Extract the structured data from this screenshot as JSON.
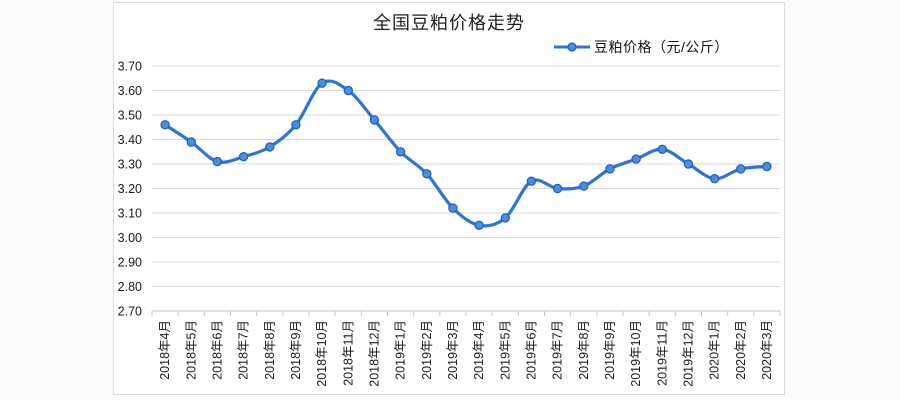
{
  "page": {
    "background": "#fbfbfb"
  },
  "chart": {
    "colors": {
      "line": "#2d74d4",
      "marker_fill": "#4b8de0",
      "marker_stroke": "#1d5fb8",
      "grid": "#d9d9d9",
      "axis": "#c2c2c2",
      "text": "#1a1a1a"
    }
  },
  "chart_data": {
    "type": "line",
    "title": "全国豆粕价格走势",
    "legend_position": "top-right",
    "grid": true,
    "smooth": true,
    "categories": [
      "2018年4月",
      "2018年5月",
      "2018年6月",
      "2018年7月",
      "2018年8月",
      "2018年9月",
      "2018年10月",
      "2018年11月",
      "2018年12月",
      "2019年1月",
      "2019年2月",
      "2019年3月",
      "2019年4月",
      "2019年5月",
      "2019年6月",
      "2019年7月",
      "2019年8月",
      "2019年9月",
      "2019年10月",
      "2019年11月",
      "2019年12月",
      "2020年1月",
      "2020年2月",
      "2020年3月"
    ],
    "series": [
      {
        "name": "豆粕价格（元/公斤）",
        "values": [
          3.46,
          3.39,
          3.31,
          3.33,
          3.37,
          3.46,
          3.63,
          3.6,
          3.48,
          3.35,
          3.26,
          3.12,
          3.05,
          3.08,
          3.23,
          3.2,
          3.21,
          3.28,
          3.32,
          3.36,
          3.3,
          3.24,
          3.28,
          3.29
        ]
      }
    ],
    "ylim": [
      2.7,
      3.7
    ],
    "ytick_step": 0.1,
    "ytick_labels": [
      "3.70",
      "3.60",
      "3.50",
      "3.40",
      "3.30",
      "3.20",
      "3.10",
      "3.00",
      "2.90",
      "2.80",
      "2.70"
    ],
    "xlabel": "",
    "ylabel": ""
  }
}
